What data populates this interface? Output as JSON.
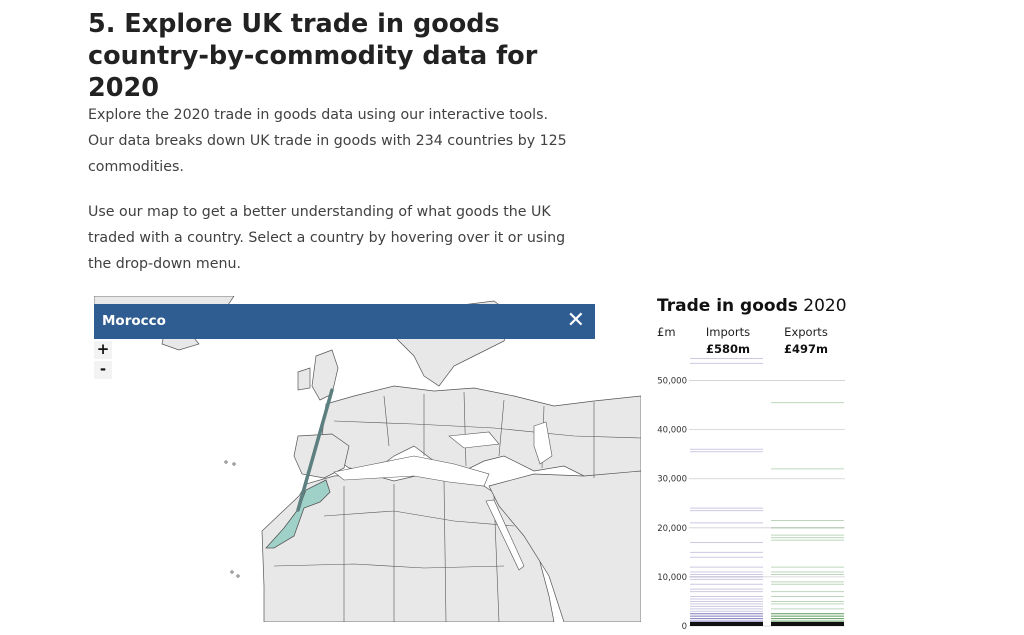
{
  "heading": "5.  Explore UK trade in goods country-by-commodity data for 2020",
  "paragraphs": [
    "Explore the 2020 trade in goods data using our interactive tools. Our data breaks down UK trade in goods with 234 countries by 125 commodities.",
    "Use our map to get a better understanding of what goods the UK traded with a country. Select a country by hovering over it or using the drop-down menu."
  ],
  "map": {
    "selected_country": "Morocco",
    "close_symbol": "✕",
    "zoom_in": "+",
    "zoom_out": "-",
    "colors": {
      "land": "#e8e8e8",
      "border": "#555555",
      "sea": "#ffffff",
      "highlight": "#9fd1c9",
      "trade_line": "#5d7f80",
      "banner": "#2f5d92"
    }
  },
  "chart": {
    "title_bold": "Trade in goods",
    "title_year": "2020",
    "unit": "£m",
    "imports_label": "Imports",
    "imports_total": "£580m",
    "exports_label": "Exports",
    "exports_total": "£497m",
    "ticks": [
      "0",
      "10,000",
      "20,000",
      "30,000",
      "40,000",
      "50,000"
    ],
    "imports_color": "#6a64b0",
    "exports_color": "#3f8a3f"
  },
  "chart_data": {
    "type": "strip",
    "title": "Trade in goods 2020",
    "ylabel": "£m",
    "ylim": [
      0,
      55000
    ],
    "series": [
      {
        "name": "Imports",
        "total": "£580m",
        "values": [
          53500,
          54500,
          36000,
          35500,
          24000,
          23500,
          21000,
          17000,
          15000,
          14000,
          12000,
          11000,
          10500,
          10000,
          9500,
          8500,
          7500,
          7000,
          6000,
          5500,
          5000,
          4500,
          4000,
          3500,
          3000,
          2500,
          2000,
          1500,
          1000,
          700,
          500,
          300,
          200
        ]
      },
      {
        "name": "Exports",
        "total": "£497m",
        "values": [
          45500,
          32000,
          21500,
          20000,
          18500,
          18000,
          17500,
          12000,
          11000,
          10500,
          9000,
          8500,
          7000,
          6000,
          5000,
          4500,
          3500,
          2500,
          2000,
          1500,
          1000,
          700,
          500,
          300,
          200
        ]
      }
    ]
  }
}
